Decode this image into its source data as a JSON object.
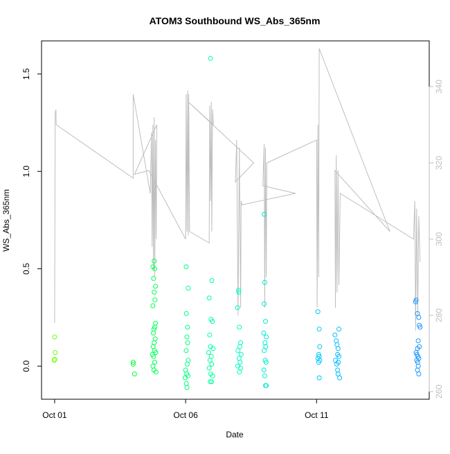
{
  "chart_data": {
    "type": "scatter",
    "title": "ATOM3 Southbound WS_Abs_365nm",
    "xlabel": "Date",
    "ylabel": "WS_Abs_365nm",
    "x_ticks": [
      "Oct 01",
      "Oct 06",
      "Oct 11"
    ],
    "x_tick_days": [
      1,
      6,
      11
    ],
    "xlim": [
      0.5,
      15.3
    ],
    "ylim": [
      -0.17,
      1.67
    ],
    "y_ticks": [
      0.0,
      0.5,
      1.0,
      1.5
    ],
    "y_tick_labels": [
      "0.0",
      "0.5",
      "1.0",
      "1.5"
    ],
    "y2lim": [
      258,
      352
    ],
    "y2_ticks": [
      260,
      280,
      300,
      320,
      340
    ],
    "y2_tick_labels": [
      "260",
      "280",
      "300",
      "320",
      "340"
    ],
    "grid": false,
    "marker": "open-circle",
    "point_color_scale": [
      "#7fff00",
      "#00ff40",
      "#00ffbf",
      "#00bfff",
      "#1e90ff"
    ],
    "line_color": "#bebebe",
    "series": [
      {
        "kind": "points",
        "axis": "left",
        "points": [
          {
            "x": 1.0,
            "y": 0.15
          },
          {
            "x": 1.02,
            "y": 0.07
          },
          {
            "x": 0.98,
            "y": 0.03
          },
          {
            "x": 1.01,
            "y": 0.035
          },
          {
            "x": 4.0,
            "y": 0.02
          },
          {
            "x": 4.0,
            "y": 0.01
          },
          {
            "x": 4.05,
            "y": -0.04
          },
          {
            "x": 4.75,
            "y": 0.51
          },
          {
            "x": 4.8,
            "y": 0.54
          },
          {
            "x": 4.82,
            "y": 0.5
          },
          {
            "x": 4.78,
            "y": 0.45
          },
          {
            "x": 4.85,
            "y": 0.41
          },
          {
            "x": 4.8,
            "y": 0.38
          },
          {
            "x": 4.83,
            "y": 0.34
          },
          {
            "x": 4.75,
            "y": 0.31
          },
          {
            "x": 4.85,
            "y": 0.22
          },
          {
            "x": 4.82,
            "y": 0.2
          },
          {
            "x": 4.79,
            "y": 0.19
          },
          {
            "x": 4.77,
            "y": 0.17
          },
          {
            "x": 4.84,
            "y": 0.14
          },
          {
            "x": 4.8,
            "y": 0.12
          },
          {
            "x": 4.76,
            "y": 0.1
          },
          {
            "x": 4.81,
            "y": 0.08
          },
          {
            "x": 4.73,
            "y": 0.06
          },
          {
            "x": 4.86,
            "y": 0.07
          },
          {
            "x": 4.78,
            "y": 0.05
          },
          {
            "x": 4.82,
            "y": 0.02
          },
          {
            "x": 4.75,
            "y": 0.0
          },
          {
            "x": 4.79,
            "y": -0.02
          },
          {
            "x": 4.87,
            "y": -0.03
          },
          {
            "x": 6.02,
            "y": 0.51
          },
          {
            "x": 6.1,
            "y": 0.4
          },
          {
            "x": 6.03,
            "y": 0.27
          },
          {
            "x": 6.07,
            "y": 0.2
          },
          {
            "x": 6.05,
            "y": 0.15
          },
          {
            "x": 6.08,
            "y": 0.12
          },
          {
            "x": 6.02,
            "y": 0.08
          },
          {
            "x": 6.1,
            "y": 0.03
          },
          {
            "x": 6.06,
            "y": 0.01
          },
          {
            "x": 6.0,
            "y": -0.02
          },
          {
            "x": 6.04,
            "y": -0.04
          },
          {
            "x": 6.09,
            "y": -0.05
          },
          {
            "x": 5.98,
            "y": -0.06
          },
          {
            "x": 6.03,
            "y": -0.09
          },
          {
            "x": 6.05,
            "y": -0.11
          },
          {
            "x": 6.95,
            "y": 1.58
          },
          {
            "x": 7.0,
            "y": 0.44
          },
          {
            "x": 6.9,
            "y": 0.35
          },
          {
            "x": 6.97,
            "y": 0.24
          },
          {
            "x": 7.02,
            "y": 0.23
          },
          {
            "x": 6.92,
            "y": 0.16
          },
          {
            "x": 6.95,
            "y": 0.1
          },
          {
            "x": 7.05,
            "y": 0.09
          },
          {
            "x": 6.88,
            "y": 0.07
          },
          {
            "x": 6.98,
            "y": 0.05
          },
          {
            "x": 6.93,
            "y": 0.03
          },
          {
            "x": 7.0,
            "y": 0.01
          },
          {
            "x": 6.9,
            "y": -0.01
          },
          {
            "x": 6.96,
            "y": -0.04
          },
          {
            "x": 7.03,
            "y": -0.05
          },
          {
            "x": 6.94,
            "y": -0.08
          },
          {
            "x": 6.99,
            "y": -0.08
          },
          {
            "x": 8.02,
            "y": 0.39
          },
          {
            "x": 8.03,
            "y": 0.38
          },
          {
            "x": 7.98,
            "y": 0.3
          },
          {
            "x": 8.05,
            "y": 0.2
          },
          {
            "x": 8.1,
            "y": 0.12
          },
          {
            "x": 8.07,
            "y": 0.1
          },
          {
            "x": 8.0,
            "y": 0.08
          },
          {
            "x": 8.12,
            "y": 0.06
          },
          {
            "x": 8.04,
            "y": 0.04
          },
          {
            "x": 8.08,
            "y": 0.02
          },
          {
            "x": 7.99,
            "y": 0.0
          },
          {
            "x": 8.1,
            "y": -0.01
          },
          {
            "x": 8.05,
            "y": -0.03
          },
          {
            "x": 9.0,
            "y": 0.78
          },
          {
            "x": 9.02,
            "y": 0.43
          },
          {
            "x": 9.0,
            "y": 0.32
          },
          {
            "x": 9.05,
            "y": 0.23
          },
          {
            "x": 8.98,
            "y": 0.17
          },
          {
            "x": 9.08,
            "y": 0.15
          },
          {
            "x": 9.03,
            "y": 0.12
          },
          {
            "x": 9.06,
            "y": 0.1
          },
          {
            "x": 9.0,
            "y": 0.08
          },
          {
            "x": 9.04,
            "y": 0.03
          },
          {
            "x": 9.07,
            "y": 0.02
          },
          {
            "x": 8.99,
            "y": -0.02
          },
          {
            "x": 9.02,
            "y": -0.05
          },
          {
            "x": 9.05,
            "y": -0.1
          },
          {
            "x": 9.08,
            "y": -0.1
          },
          {
            "x": 11.05,
            "y": 0.28
          },
          {
            "x": 11.1,
            "y": 0.19
          },
          {
            "x": 11.12,
            "y": 0.1
          },
          {
            "x": 11.08,
            "y": 0.06
          },
          {
            "x": 11.1,
            "y": 0.05
          },
          {
            "x": 11.05,
            "y": 0.04
          },
          {
            "x": 11.12,
            "y": 0.03
          },
          {
            "x": 11.08,
            "y": 0.02
          },
          {
            "x": 11.1,
            "y": -0.06
          },
          {
            "x": 11.7,
            "y": 0.16
          },
          {
            "x": 11.85,
            "y": 0.19
          },
          {
            "x": 11.75,
            "y": 0.13
          },
          {
            "x": 11.78,
            "y": 0.11
          },
          {
            "x": 11.82,
            "y": 0.09
          },
          {
            "x": 11.8,
            "y": 0.06
          },
          {
            "x": 11.85,
            "y": 0.05
          },
          {
            "x": 11.72,
            "y": 0.03
          },
          {
            "x": 11.83,
            "y": 0.02
          },
          {
            "x": 11.77,
            "y": 0.01
          },
          {
            "x": 11.8,
            "y": -0.02
          },
          {
            "x": 11.82,
            "y": -0.04
          },
          {
            "x": 11.88,
            "y": -0.06
          },
          {
            "x": 14.8,
            "y": 0.34
          },
          {
            "x": 14.78,
            "y": 0.33
          },
          {
            "x": 14.85,
            "y": 0.27
          },
          {
            "x": 14.9,
            "y": 0.25
          },
          {
            "x": 14.92,
            "y": 0.21
          },
          {
            "x": 14.95,
            "y": 0.2
          },
          {
            "x": 14.88,
            "y": 0.13
          },
          {
            "x": 14.92,
            "y": 0.1
          },
          {
            "x": 14.85,
            "y": 0.09
          },
          {
            "x": 14.8,
            "y": 0.07
          },
          {
            "x": 14.83,
            "y": 0.06
          },
          {
            "x": 14.87,
            "y": 0.05
          },
          {
            "x": 14.9,
            "y": 0.04
          },
          {
            "x": 14.82,
            "y": 0.03
          },
          {
            "x": 14.86,
            "y": 0.02
          },
          {
            "x": 14.88,
            "y": 0.0
          },
          {
            "x": 14.85,
            "y": -0.02
          },
          {
            "x": 14.9,
            "y": -0.04
          }
        ]
      },
      {
        "kind": "line",
        "axis": "right",
        "points": [
          {
            "x": 1.0,
            "y": 278
          },
          {
            "x": 1.02,
            "y": 333
          },
          {
            "x": 1.05,
            "y": 334
          },
          {
            "x": 1.06,
            "y": 330
          },
          {
            "x": 4.0,
            "y": 316
          },
          {
            "x": 4.0,
            "y": 338
          },
          {
            "x": 4.65,
            "y": 312
          },
          {
            "x": 4.7,
            "y": 328
          },
          {
            "x": 4.72,
            "y": 298
          },
          {
            "x": 4.75,
            "y": 330
          },
          {
            "x": 4.77,
            "y": 292
          },
          {
            "x": 4.8,
            "y": 332
          },
          {
            "x": 4.82,
            "y": 290
          },
          {
            "x": 4.85,
            "y": 326
          },
          {
            "x": 4.88,
            "y": 300
          },
          {
            "x": 4.9,
            "y": 330
          },
          {
            "x": 4.05,
            "y": 317
          },
          {
            "x": 4.6,
            "y": 318
          },
          {
            "x": 6.0,
            "y": 300
          },
          {
            "x": 6.02,
            "y": 338
          },
          {
            "x": 6.05,
            "y": 302
          },
          {
            "x": 6.08,
            "y": 339
          },
          {
            "x": 6.1,
            "y": 301
          },
          {
            "x": 6.12,
            "y": 338
          },
          {
            "x": 6.15,
            "y": 302
          },
          {
            "x": 6.9,
            "y": 299
          },
          {
            "x": 6.92,
            "y": 335
          },
          {
            "x": 6.95,
            "y": 310
          },
          {
            "x": 6.98,
            "y": 336
          },
          {
            "x": 7.0,
            "y": 302
          },
          {
            "x": 7.03,
            "y": 334
          },
          {
            "x": 7.06,
            "y": 330
          },
          {
            "x": 6.1,
            "y": 336
          },
          {
            "x": 8.6,
            "y": 320
          },
          {
            "x": 7.9,
            "y": 315
          },
          {
            "x": 7.95,
            "y": 326
          },
          {
            "x": 8.0,
            "y": 280
          },
          {
            "x": 8.05,
            "y": 324
          },
          {
            "x": 8.1,
            "y": 282
          },
          {
            "x": 8.12,
            "y": 310
          },
          {
            "x": 8.15,
            "y": 309
          },
          {
            "x": 10.2,
            "y": 312
          },
          {
            "x": 8.95,
            "y": 314
          },
          {
            "x": 9.0,
            "y": 325
          },
          {
            "x": 9.02,
            "y": 282
          },
          {
            "x": 9.05,
            "y": 324
          },
          {
            "x": 9.08,
            "y": 290
          },
          {
            "x": 9.1,
            "y": 320
          },
          {
            "x": 11.0,
            "y": 326
          },
          {
            "x": 11.02,
            "y": 282
          },
          {
            "x": 11.05,
            "y": 330
          },
          {
            "x": 11.08,
            "y": 290
          },
          {
            "x": 11.1,
            "y": 350
          },
          {
            "x": 12.5,
            "y": 325
          },
          {
            "x": 13.8,
            "y": 302
          },
          {
            "x": 11.7,
            "y": 318
          },
          {
            "x": 11.72,
            "y": 282
          },
          {
            "x": 11.75,
            "y": 322
          },
          {
            "x": 11.78,
            "y": 286
          },
          {
            "x": 11.82,
            "y": 318
          },
          {
            "x": 11.85,
            "y": 288
          },
          {
            "x": 11.9,
            "y": 312
          },
          {
            "x": 14.7,
            "y": 300
          },
          {
            "x": 14.75,
            "y": 310
          },
          {
            "x": 14.78,
            "y": 276
          },
          {
            "x": 14.82,
            "y": 308
          },
          {
            "x": 14.86,
            "y": 280
          },
          {
            "x": 14.9,
            "y": 306
          },
          {
            "x": 14.95,
            "y": 294
          }
        ]
      }
    ]
  }
}
